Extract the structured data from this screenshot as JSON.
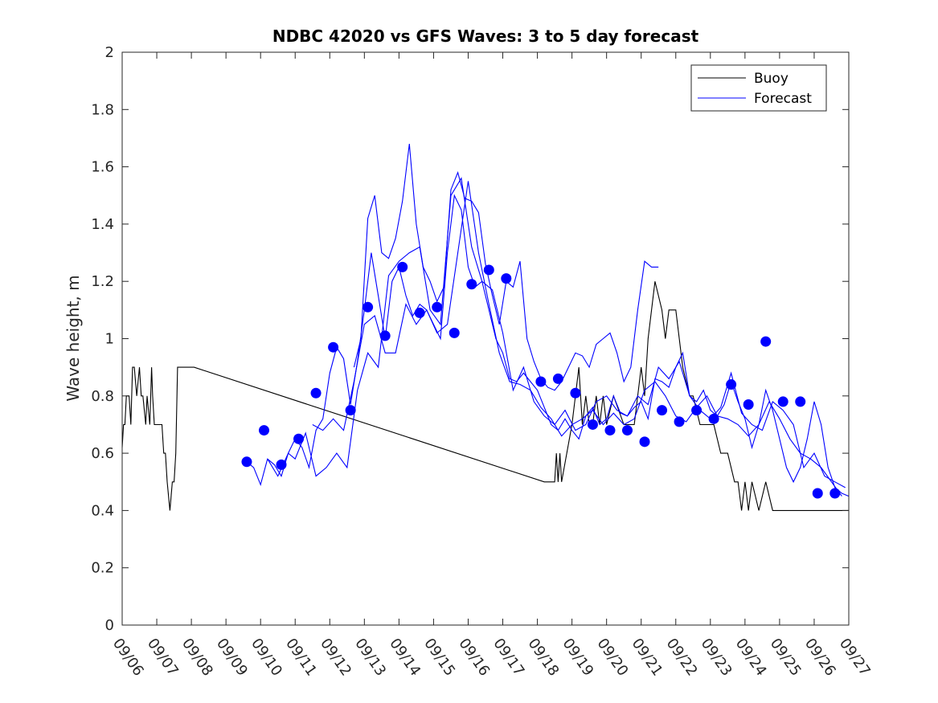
{
  "chart_data": {
    "type": "line",
    "title": "NDBC 42020 vs GFS Waves: 3 to 5 day forecast",
    "xlabel": "",
    "ylabel": "Wave height, m",
    "xlim": [
      0,
      21
    ],
    "ylim": [
      0,
      2
    ],
    "yticks": [
      0,
      0.2,
      0.4,
      0.6,
      0.8,
      1,
      1.2,
      1.4,
      1.6,
      1.8,
      2
    ],
    "ytick_labels": [
      "0",
      "0.2",
      "0.4",
      "0.6",
      "0.8",
      "1",
      "1.2",
      "1.4",
      "1.6",
      "1.8",
      "2"
    ],
    "xticks": [
      0,
      1,
      2,
      3,
      4,
      5,
      6,
      7,
      8,
      9,
      10,
      11,
      12,
      13,
      14,
      15,
      16,
      17,
      18,
      19,
      20,
      21
    ],
    "xtick_labels": [
      "09/06",
      "09/07",
      "09/08",
      "09/09",
      "09/10",
      "09/11",
      "09/12",
      "09/13",
      "09/14",
      "09/15",
      "09/16",
      "09/17",
      "09/18",
      "09/19",
      "09/20",
      "09/21",
      "09/22",
      "09/23",
      "09/24",
      "09/25",
      "09/26",
      "09/27"
    ],
    "legend": {
      "position": "top-right",
      "entries": [
        "Buoy",
        "Forecast"
      ]
    },
    "colors": {
      "buoy": "#000000",
      "forecast": "#0000ff",
      "markers": "#0000ff"
    },
    "series": [
      {
        "name": "Buoy",
        "x": [
          0.0,
          0.04,
          0.08,
          0.12,
          0.2,
          0.25,
          0.3,
          0.35,
          0.42,
          0.5,
          0.55,
          0.6,
          0.68,
          0.72,
          0.8,
          0.85,
          0.88,
          0.93,
          1.0,
          1.05,
          1.08,
          1.15,
          1.2,
          1.25,
          1.3,
          1.38,
          1.45,
          1.5,
          1.55,
          1.6,
          1.65,
          1.7,
          1.75,
          1.8,
          1.85,
          1.88,
          1.95,
          2.0,
          2.05,
          2.08,
          12.2,
          12.5,
          12.55,
          12.6,
          12.65,
          12.7,
          13.0,
          13.2,
          13.3,
          13.4,
          13.5,
          13.6,
          13.7,
          13.8,
          13.9,
          14.0,
          14.2,
          14.5,
          14.8,
          15.0,
          15.1,
          15.2,
          15.4,
          15.6,
          15.7,
          15.8,
          16.0,
          16.2,
          16.4,
          16.5,
          16.7,
          16.9,
          17.0,
          17.1,
          17.3,
          17.5,
          17.7,
          17.8,
          17.9,
          18.0,
          18.1,
          18.2,
          18.4,
          18.6,
          18.8,
          19.0,
          19.2,
          19.5,
          19.8,
          20.0,
          20.1,
          20.2,
          20.4,
          20.5,
          20.6,
          20.7,
          20.8,
          20.9,
          21.0
        ],
        "y": [
          0.62,
          0.7,
          0.7,
          0.8,
          0.8,
          0.7,
          0.9,
          0.9,
          0.8,
          0.9,
          0.8,
          0.8,
          0.7,
          0.8,
          0.7,
          0.9,
          0.8,
          0.7,
          0.7,
          0.7,
          0.7,
          0.7,
          0.6,
          0.6,
          0.5,
          0.4,
          0.5,
          0.5,
          0.6,
          0.9,
          0.9,
          0.9,
          0.9,
          0.9,
          0.9,
          0.9,
          0.9,
          0.9,
          0.9,
          0.9,
          0.5,
          0.5,
          0.6,
          0.5,
          0.6,
          0.5,
          0.7,
          0.9,
          0.7,
          0.8,
          0.7,
          0.7,
          0.8,
          0.7,
          0.8,
          0.7,
          0.8,
          0.7,
          0.7,
          0.9,
          0.8,
          1.0,
          1.2,
          1.1,
          1.0,
          1.1,
          1.1,
          0.9,
          0.8,
          0.8,
          0.7,
          0.7,
          0.7,
          0.7,
          0.6,
          0.6,
          0.5,
          0.5,
          0.4,
          0.5,
          0.4,
          0.5,
          0.4,
          0.5,
          0.4,
          0.4,
          0.4,
          0.4,
          0.4,
          0.4,
          0.4,
          0.4,
          0.4,
          0.4,
          0.4,
          0.4,
          0.4,
          0.4,
          0.4
        ]
      },
      {
        "name": "Forecast",
        "segments": [
          {
            "x": [
              3.6,
              3.8,
              4.0,
              4.2,
              4.4,
              4.6,
              4.8,
              5.0,
              5.2,
              5.4,
              5.6,
              5.8,
              6.0,
              6.2,
              6.4,
              6.6,
              6.8,
              7.0,
              7.2,
              7.4,
              7.6,
              7.8,
              8.0,
              8.2,
              8.4,
              8.6,
              8.8,
              9.0,
              9.2,
              9.4,
              9.6,
              9.8,
              10.0,
              10.2,
              10.4,
              10.6,
              10.8,
              11.0,
              11.2,
              11.4,
              11.6,
              11.8,
              12.0,
              12.2,
              12.4,
              12.6,
              12.8,
              13.0,
              13.2,
              13.4,
              13.6,
              13.8,
              14.0,
              14.2,
              14.4,
              14.6,
              14.8,
              15.0,
              15.2,
              15.4,
              15.6,
              15.8,
              16.0,
              16.2,
              16.4,
              16.6,
              16.8,
              17.0,
              17.2,
              17.4,
              17.6,
              17.8,
              18.0,
              18.2,
              18.4,
              18.6,
              18.8,
              19.0,
              19.2,
              19.4,
              19.6,
              19.8,
              20.0,
              20.2,
              20.4,
              20.6,
              20.8,
              21.0
            ],
            "y": [
              0.57,
              0.55,
              0.49,
              0.58,
              0.56,
              0.52,
              0.6,
              0.65,
              0.62,
              0.55,
              0.68,
              0.72,
              0.88,
              0.97,
              0.93,
              0.77,
              0.92,
              1.1,
              1.3,
              1.15,
              1.0,
              1.2,
              1.25,
              1.15,
              1.08,
              1.12,
              1.1,
              1.05,
              1.0,
              1.3,
              1.5,
              1.45,
              1.25,
              1.18,
              1.2,
              1.1,
              1.0,
              0.95,
              0.86,
              0.85,
              0.88,
              0.85,
              0.82,
              0.76,
              0.7,
              0.68,
              0.72,
              0.68,
              0.65,
              0.73,
              0.76,
              0.7,
              0.72,
              0.8,
              0.74,
              0.73,
              0.76,
              0.78,
              0.72,
              0.86,
              0.85,
              0.83,
              0.9,
              0.95,
              0.8,
              0.78,
              0.82,
              0.75,
              0.73,
              0.77,
              0.85,
              0.78,
              0.72,
              0.62,
              0.7,
              0.82,
              0.75,
              0.65,
              0.55,
              0.5,
              0.55,
              0.65,
              0.78,
              0.7,
              0.55,
              0.48,
              0.46,
              0.45
            ]
          },
          {
            "x": [
              4.2,
              4.5,
              4.8,
              5.0,
              5.3,
              5.6,
              5.9,
              6.2,
              6.5,
              6.8,
              7.1,
              7.4,
              7.7,
              8.0,
              8.3,
              8.6,
              8.9,
              9.2,
              9.5,
              9.8,
              10.1,
              10.4,
              10.7,
              11.0,
              11.3,
              11.6,
              11.9,
              12.2,
              12.5,
              12.8,
              13.1,
              13.4,
              13.7,
              14.0,
              14.3,
              14.6,
              14.9,
              15.2,
              15.5,
              15.8,
              16.1,
              16.4,
              16.7,
              17.0,
              17.3,
              17.6,
              17.9,
              18.2,
              18.5,
              18.8,
              19.1,
              19.4,
              19.7,
              20.0,
              20.3,
              20.6,
              20.9
            ],
            "y": [
              0.58,
              0.52,
              0.6,
              0.58,
              0.67,
              0.52,
              0.55,
              0.6,
              0.55,
              0.82,
              0.95,
              0.9,
              1.22,
              1.27,
              1.3,
              1.32,
              1.1,
              1.05,
              1.5,
              1.56,
              1.32,
              1.2,
              1.17,
              1.02,
              0.82,
              0.9,
              0.78,
              0.73,
              0.7,
              0.75,
              0.68,
              0.7,
              0.78,
              0.8,
              0.75,
              0.73,
              0.8,
              0.77,
              0.9,
              0.86,
              0.92,
              0.8,
              0.75,
              0.72,
              0.76,
              0.88,
              0.74,
              0.7,
              0.68,
              0.78,
              0.75,
              0.7,
              0.55,
              0.6,
              0.52,
              0.5,
              0.48
            ]
          },
          {
            "x": [
              5.5,
              5.8,
              6.1,
              6.4,
              6.7,
              7.0,
              7.3,
              7.6,
              7.9,
              8.2,
              8.5,
              8.8,
              9.1,
              9.4,
              9.7,
              10.0,
              10.3,
              10.6,
              10.9,
              11.2,
              11.5,
              11.8,
              12.1,
              12.4,
              12.7,
              13.0,
              13.3,
              13.6,
              13.9,
              14.2,
              14.5,
              14.8,
              15.1,
              15.4,
              15.7,
              16.0,
              16.3,
              16.6,
              16.9,
              17.2,
              17.5,
              17.8,
              18.1,
              18.4,
              18.7,
              19.0,
              19.3,
              19.6,
              19.9,
              20.2,
              20.5,
              20.8
            ],
            "y": [
              0.7,
              0.68,
              0.72,
              0.68,
              0.85,
              1.05,
              1.08,
              0.95,
              0.95,
              1.12,
              1.05,
              1.1,
              1.02,
              1.05,
              1.3,
              1.55,
              1.3,
              1.12,
              0.95,
              0.85,
              0.84,
              0.82,
              0.76,
              0.72,
              0.66,
              0.7,
              0.72,
              0.75,
              0.7,
              0.74,
              0.7,
              0.72,
              0.82,
              0.85,
              0.8,
              0.73,
              0.71,
              0.76,
              0.8,
              0.73,
              0.72,
              0.7,
              0.66,
              0.7,
              0.78,
              0.72,
              0.65,
              0.6,
              0.58,
              0.55,
              0.5,
              0.45
            ]
          },
          {
            "x": [
              6.7,
              6.9,
              7.1,
              7.3,
              7.5,
              7.7,
              7.9,
              8.1,
              8.3,
              8.5,
              8.7,
              8.9,
              9.1,
              9.3,
              9.5,
              9.7,
              9.9,
              10.1,
              10.3,
              10.5,
              10.7,
              10.9,
              11.1,
              11.3,
              11.5,
              11.7,
              11.9,
              12.1,
              12.3,
              12.5,
              12.7,
              12.9,
              13.1,
              13.3,
              13.5,
              13.7,
              13.9,
              14.1,
              14.3,
              14.5,
              14.7,
              14.9,
              15.1,
              15.3,
              15.5
            ],
            "y": [
              0.9,
              1.0,
              1.42,
              1.5,
              1.3,
              1.28,
              1.35,
              1.48,
              1.68,
              1.4,
              1.25,
              1.2,
              1.13,
              1.18,
              1.52,
              1.58,
              1.49,
              1.48,
              1.44,
              1.26,
              1.15,
              1.05,
              1.2,
              1.18,
              1.27,
              1.0,
              0.92,
              0.86,
              0.83,
              0.82,
              0.85,
              0.9,
              0.95,
              0.94,
              0.9,
              0.98,
              1.0,
              1.02,
              0.95,
              0.85,
              0.9,
              1.1,
              1.27,
              1.25,
              1.25
            ]
          }
        ]
      },
      {
        "name": "Forecast markers",
        "x": [
          3.6,
          4.1,
          4.6,
          5.1,
          5.6,
          6.1,
          6.6,
          7.1,
          7.6,
          8.1,
          8.6,
          9.1,
          9.6,
          10.1,
          10.6,
          11.1,
          12.1,
          12.6,
          13.1,
          13.6,
          14.1,
          14.6,
          15.1,
          15.6,
          16.1,
          16.6,
          17.1,
          17.6,
          18.1,
          18.6,
          19.1,
          19.6,
          20.1,
          20.6
        ],
        "y": [
          0.57,
          0.68,
          0.56,
          0.65,
          0.81,
          0.97,
          0.75,
          1.11,
          1.01,
          1.25,
          1.09,
          1.11,
          1.02,
          1.19,
          1.24,
          1.21,
          0.85,
          0.86,
          0.81,
          0.7,
          0.68,
          0.68,
          0.64,
          0.75,
          0.71,
          0.75,
          0.72,
          0.84,
          0.77,
          0.99,
          0.78,
          0.78,
          0.46,
          0.46
        ]
      }
    ]
  }
}
